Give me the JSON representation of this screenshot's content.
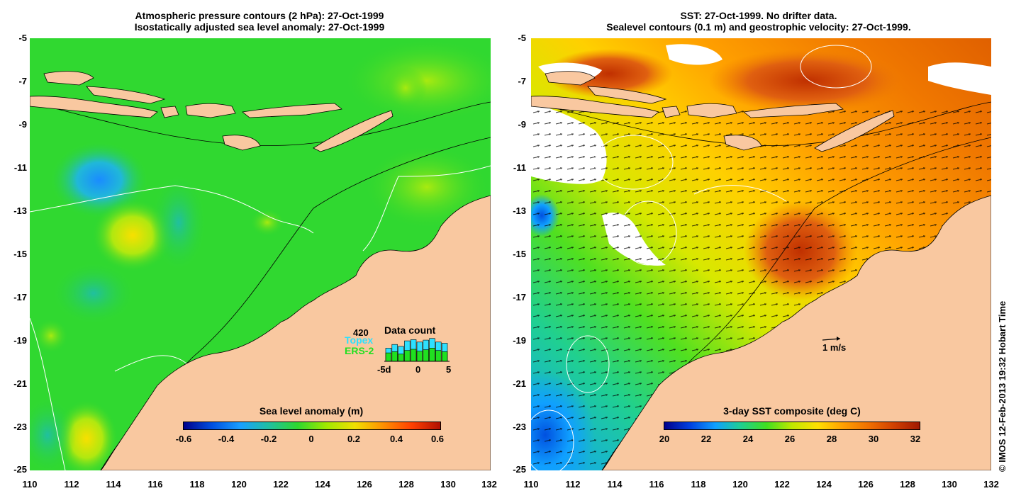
{
  "left": {
    "title_line1": "Atmospheric pressure contours (2 hPa): 27-Oct-1999",
    "title_line2": "Isostatically adjusted sea level anomaly: 27-Oct-1999",
    "colorbar_label": "Sea level anomaly (m)",
    "colorbar_ticks": [
      "-0.6",
      "-0.4",
      "-0.2",
      "0",
      "0.2",
      "0.4",
      "0.6"
    ],
    "inset": {
      "count": "420",
      "series1": "Topex",
      "series2": "ERS-2",
      "title": "Data count",
      "ticks": [
        "-5d",
        "0",
        "5"
      ],
      "topex_values": [
        0.55,
        0.7,
        0.62,
        0.85,
        0.9,
        0.8,
        0.88,
        0.95,
        0.8,
        0.75
      ],
      "ers_values": [
        0.35,
        0.4,
        0.3,
        0.45,
        0.5,
        0.42,
        0.48,
        0.55,
        0.45,
        0.4
      ]
    }
  },
  "right": {
    "title_line1": "SST: 27-Oct-1999. No drifter data.",
    "title_line2": "Sealevel contours (0.1 m) and geostrophic velocity: 27-Oct-1999.",
    "colorbar_label": "3-day SST composite (deg C)",
    "colorbar_ticks": [
      "20",
      "22",
      "24",
      "26",
      "28",
      "30",
      "32"
    ],
    "scale_label": "1 m/s"
  },
  "axes": {
    "lat_ticks": [
      "-5",
      "-7",
      "-9",
      "-11",
      "-13",
      "-15",
      "-17",
      "-19",
      "-21",
      "-23",
      "-25"
    ],
    "lon_ticks": [
      "110",
      "112",
      "114",
      "116",
      "118",
      "120",
      "122",
      "124",
      "126",
      "128",
      "130",
      "132"
    ]
  },
  "credit": "© IMOS 12-Feb-2013 19:32 Hobart Time",
  "colors": {
    "land": "#f9c8a0",
    "anomaly_ramp": [
      "#00008b",
      "#0050e0",
      "#1aa0ff",
      "#20c0a0",
      "#2ed82e",
      "#a0e800",
      "#f0e000",
      "#ff9000",
      "#ff4000",
      "#b01000"
    ],
    "sst_ramp": [
      "#00008b",
      "#0040e0",
      "#10a0ff",
      "#20d090",
      "#40e020",
      "#c0e800",
      "#ffe000",
      "#ffa000",
      "#f07000",
      "#d04000",
      "#a01800"
    ]
  }
}
